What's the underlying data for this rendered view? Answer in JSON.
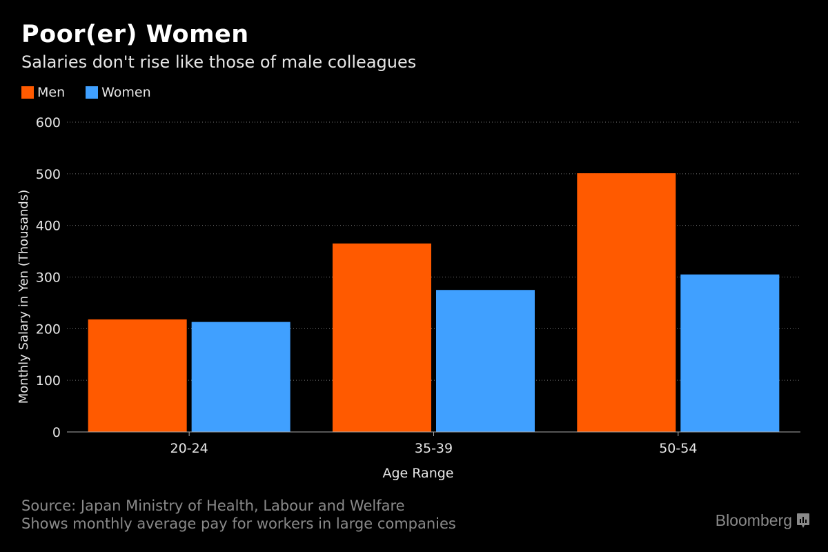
{
  "chart_data": {
    "type": "bar",
    "title": "Poor(er) Women",
    "subtitle": "Salaries don't rise like those of male colleagues",
    "xlabel": "Age Range",
    "ylabel": "Monthly Salary in Yen (Thousands)",
    "categories": [
      "20-24",
      "35-39",
      "50-54"
    ],
    "series": [
      {
        "name": "Men",
        "color": "#ff5a00",
        "values": [
          218,
          365,
          501
        ]
      },
      {
        "name": "Women",
        "color": "#40a0ff",
        "values": [
          213,
          275,
          305
        ]
      }
    ],
    "ylim": [
      0,
      600
    ],
    "yticks": [
      0,
      100,
      200,
      300,
      400,
      500,
      600
    ],
    "grid": true,
    "legend_placement": "top-left"
  },
  "footer": {
    "source": "Source: Japan Ministry of Health, Labour and Welfare",
    "note": "Shows monthly average pay for workers in large companies"
  },
  "logo": {
    "text": "Bloomberg",
    "icon": "bloomberg-chart-icon"
  }
}
